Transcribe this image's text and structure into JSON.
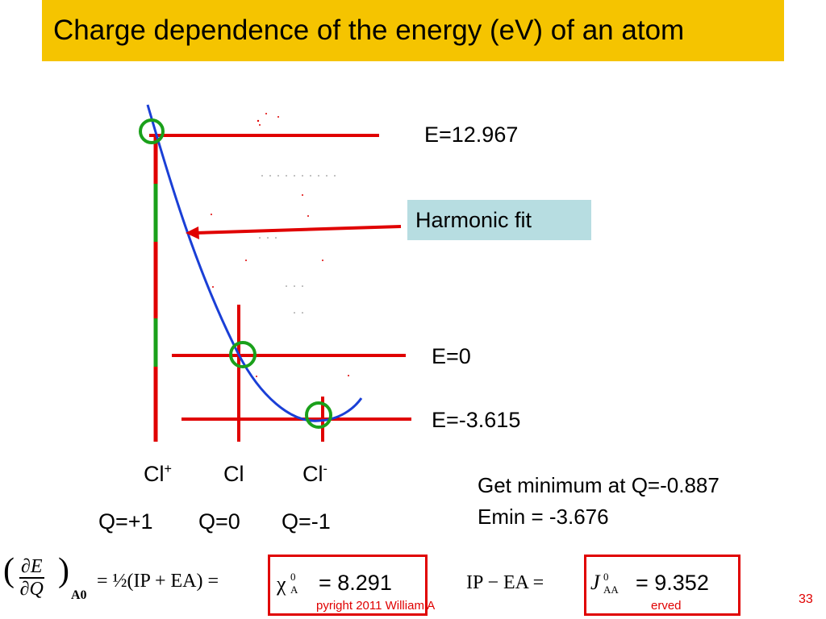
{
  "title": "Charge dependence of the energy (eV) of an atom",
  "energy_labels": {
    "top": "E=12.967",
    "zero": "E=0",
    "bottom": "E=-3.615"
  },
  "harmonic_fit_label": "Harmonic fit",
  "species": {
    "cation": "Cl",
    "cation_sup": "+",
    "neutral": "Cl",
    "anion": "Cl",
    "anion_sup": "-"
  },
  "charges": {
    "cation": "Q=+1",
    "neutral": "Q=0",
    "anion": "Q=-1"
  },
  "minimum_note": {
    "line1": "Get minimum at Q=-0.887",
    "line2": "Emin = -3.676"
  },
  "formula": {
    "numerator": "∂E",
    "denominator": "∂Q",
    "subscript": "A0",
    "half_expr": "= ½(IP + EA) =",
    "chi_symbol": "χ",
    "chi_super": "0",
    "chi_sub": "A",
    "chi_value": "= 8.291",
    "ip_ea_expr": "IP − EA =",
    "j_symbol": "J",
    "j_super": "0",
    "j_sub": "AA",
    "j_value": "= 9.352"
  },
  "copyright_fragment_1": "pyright 2011 William A",
  "copyright_fragment_2": "erved",
  "page_number": "33",
  "colors": {
    "title_bg": "#f5c400",
    "curve": "#1a3fd6",
    "red": "#e00000",
    "green": "#1aa01a",
    "callout_bg": "#b7dde1"
  }
}
